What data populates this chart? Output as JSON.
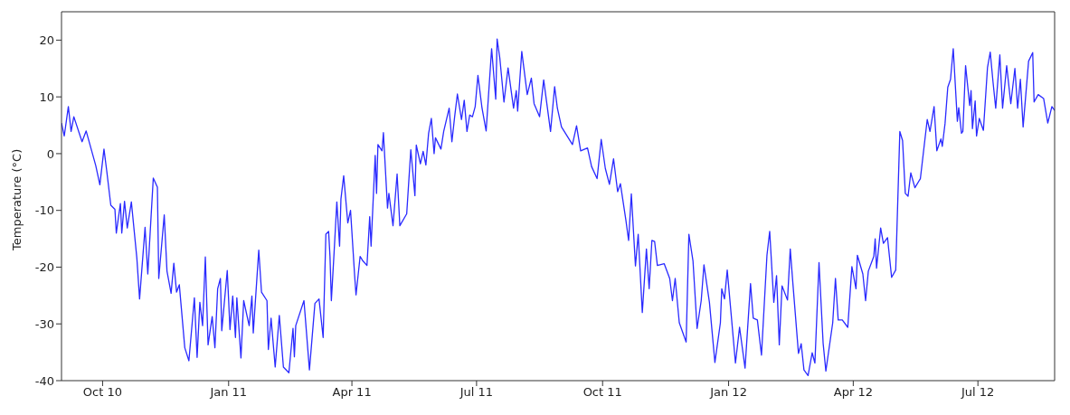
{
  "chart_data": {
    "type": "line",
    "ylabel": "Temperature (°C)",
    "color": "#2a2aff",
    "xlim": [
      "2010-09-01",
      "2012-08-26"
    ],
    "ylim": [
      -40,
      25
    ],
    "xticks": [
      {
        "value": "2010-10-01",
        "label": "Oct 10"
      },
      {
        "value": "2011-01-01",
        "label": "Jan 11"
      },
      {
        "value": "2011-04-01",
        "label": "Apr 11"
      },
      {
        "value": "2011-07-01",
        "label": "Jul 11"
      },
      {
        "value": "2011-10-01",
        "label": "Oct 11"
      },
      {
        "value": "2012-01-01",
        "label": "Jan 12"
      },
      {
        "value": "2012-04-01",
        "label": "Apr 12"
      },
      {
        "value": "2012-07-01",
        "label": "Jul 12"
      }
    ],
    "yticks": [
      -40,
      -30,
      -20,
      -10,
      0,
      10,
      20
    ],
    "x": [
      "2010-09-01",
      "2010-09-03",
      "2010-09-06",
      "2010-09-08",
      "2010-09-10",
      "2010-09-16",
      "2010-09-19",
      "2010-09-26",
      "2010-09-29",
      "2010-10-02",
      "2010-10-04",
      "2010-10-07",
      "2010-10-10",
      "2010-10-11",
      "2010-10-14",
      "2010-10-15",
      "2010-10-17",
      "2010-10-19",
      "2010-10-22",
      "2010-10-26",
      "2010-10-28",
      "2010-11-01",
      "2010-11-03",
      "2010-11-07",
      "2010-11-10",
      "2010-11-11",
      "2010-11-15",
      "2010-11-17",
      "2010-11-20",
      "2010-11-22",
      "2010-11-24",
      "2010-11-26",
      "2010-11-30",
      "2010-12-03",
      "2010-12-07",
      "2010-12-09",
      "2010-12-11",
      "2010-12-13",
      "2010-12-15",
      "2010-12-17",
      "2010-12-20",
      "2010-12-22",
      "2010-12-24",
      "2010-12-26",
      "2010-12-27",
      "2010-12-31",
      "2011-01-02",
      "2011-01-04",
      "2011-01-06",
      "2011-01-07",
      "2011-01-10",
      "2011-01-12",
      "2011-01-16",
      "2011-01-18",
      "2011-01-19",
      "2011-01-23",
      "2011-01-25",
      "2011-01-29",
      "2011-01-30",
      "2011-02-01",
      "2011-02-04",
      "2011-02-07",
      "2011-02-10",
      "2011-02-14",
      "2011-02-17",
      "2011-02-18",
      "2011-02-19",
      "2011-02-25",
      "2011-03-01",
      "2011-03-05",
      "2011-03-08",
      "2011-03-11",
      "2011-03-13",
      "2011-03-15",
      "2011-03-16",
      "2011-03-17",
      "2011-03-19",
      "2011-03-21",
      "2011-03-23",
      "2011-03-24",
      "2011-03-26",
      "2011-03-29",
      "2011-03-31",
      "2011-04-03",
      "2011-04-04",
      "2011-04-07",
      "2011-04-09",
      "2011-04-12",
      "2011-04-14",
      "2011-04-15",
      "2011-04-18",
      "2011-04-19",
      "2011-04-20",
      "2011-04-23",
      "2011-04-24",
      "2011-04-27",
      "2011-04-28",
      "2011-05-01",
      "2011-05-04",
      "2011-05-06",
      "2011-05-11",
      "2011-05-14",
      "2011-05-17",
      "2011-05-18",
      "2011-05-21",
      "2011-05-23",
      "2011-05-25",
      "2011-05-27",
      "2011-05-29",
      "2011-05-31",
      "2011-06-01",
      "2011-06-05",
      "2011-06-07",
      "2011-06-11",
      "2011-06-13",
      "2011-06-15",
      "2011-06-17",
      "2011-06-20",
      "2011-06-22",
      "2011-06-24",
      "2011-06-26",
      "2011-06-28",
      "2011-06-30",
      "2011-07-02",
      "2011-07-05",
      "2011-07-08",
      "2011-07-12",
      "2011-07-15",
      "2011-07-16",
      "2011-07-18",
      "2011-07-21",
      "2011-07-24",
      "2011-07-28",
      "2011-07-30",
      "2011-07-31",
      "2011-08-03",
      "2011-08-07",
      "2011-08-10",
      "2011-08-12",
      "2011-08-16",
      "2011-08-19",
      "2011-08-24",
      "2011-08-27",
      "2011-08-29",
      "2011-09-01",
      "2011-09-09",
      "2011-09-12",
      "2011-09-15",
      "2011-09-20",
      "2011-09-23",
      "2011-09-27",
      "2011-09-30",
      "2011-10-03",
      "2011-10-06",
      "2011-10-09",
      "2011-10-12",
      "2011-10-14",
      "2011-10-18",
      "2011-10-20",
      "2011-10-22",
      "2011-10-25",
      "2011-10-27",
      "2011-10-30",
      "2011-11-02",
      "2011-11-04",
      "2011-11-06",
      "2011-11-08",
      "2011-11-10",
      "2011-11-15",
      "2011-11-19",
      "2011-11-21",
      "2011-11-23",
      "2011-11-26",
      "2011-12-01",
      "2011-12-03",
      "2011-12-06",
      "2011-12-09",
      "2011-12-12",
      "2011-12-14",
      "2011-12-18",
      "2011-12-22",
      "2011-12-26",
      "2011-12-27",
      "2011-12-29",
      "2011-12-31",
      "2012-01-06",
      "2012-01-09",
      "2012-01-13",
      "2012-01-17",
      "2012-01-19",
      "2012-01-22",
      "2012-01-25",
      "2012-01-29",
      "2012-01-31",
      "2012-02-03",
      "2012-02-05",
      "2012-02-07",
      "2012-02-09",
      "2012-02-13",
      "2012-02-15",
      "2012-02-17",
      "2012-02-21",
      "2012-02-23",
      "2012-02-25",
      "2012-02-28",
      "2012-03-02",
      "2012-03-04",
      "2012-03-07",
      "2012-03-10",
      "2012-03-12",
      "2012-03-17",
      "2012-03-19",
      "2012-03-21",
      "2012-03-24",
      "2012-03-28",
      "2012-03-31",
      "2012-04-03",
      "2012-04-04",
      "2012-04-08",
      "2012-04-10",
      "2012-04-12",
      "2012-04-16",
      "2012-04-17",
      "2012-04-18",
      "2012-04-21",
      "2012-04-23",
      "2012-04-26",
      "2012-04-29",
      "2012-05-02",
      "2012-05-05",
      "2012-05-07",
      "2012-05-09",
      "2012-05-11",
      "2012-05-13",
      "2012-05-16",
      "2012-05-20",
      "2012-05-25",
      "2012-05-27",
      "2012-05-30",
      "2012-06-01",
      "2012-06-04",
      "2012-06-05",
      "2012-06-07",
      "2012-06-09",
      "2012-06-11",
      "2012-06-13",
      "2012-06-16",
      "2012-06-17",
      "2012-06-19",
      "2012-06-20",
      "2012-06-22",
      "2012-06-25",
      "2012-06-26",
      "2012-06-27",
      "2012-06-29",
      "2012-06-30",
      "2012-07-02",
      "2012-07-05",
      "2012-07-08",
      "2012-07-10",
      "2012-07-12",
      "2012-07-14",
      "2012-07-17",
      "2012-07-19",
      "2012-07-22",
      "2012-07-25",
      "2012-07-28",
      "2012-07-30",
      "2012-08-01",
      "2012-08-03",
      "2012-08-07",
      "2012-08-10",
      "2012-08-11",
      "2012-08-14",
      "2012-08-18",
      "2012-08-21",
      "2012-08-24",
      "2012-08-26"
    ],
    "values": [
      5.4,
      3.1,
      8.3,
      3.9,
      6.5,
      2.1,
      4.0,
      -2.1,
      -5.5,
      0.8,
      -3.0,
      -9.1,
      -9.8,
      -14.0,
      -8.8,
      -14.0,
      -8.4,
      -13.1,
      -8.5,
      -18.4,
      -25.6,
      -13.0,
      -21.2,
      -4.3,
      -5.9,
      -22.0,
      -10.8,
      -20.7,
      -24.6,
      -19.3,
      -24.4,
      -23.1,
      -34.2,
      -36.5,
      -25.4,
      -35.9,
      -26.2,
      -30.3,
      -18.2,
      -33.7,
      -28.7,
      -34.2,
      -23.8,
      -22.0,
      -31.2,
      -20.6,
      -31.0,
      -25.1,
      -32.4,
      -25.4,
      -36.0,
      -25.9,
      -30.3,
      -25.1,
      -31.6,
      -17.0,
      -24.4,
      -25.9,
      -34.5,
      -29.0,
      -37.6,
      -28.5,
      -37.6,
      -38.6,
      -30.8,
      -35.8,
      -30.3,
      -25.9,
      -38.1,
      -26.4,
      -25.6,
      -32.4,
      -14.2,
      -13.7,
      -18.1,
      -25.9,
      -17.4,
      -8.5,
      -16.3,
      -8.0,
      -3.9,
      -12.2,
      -10.0,
      -21.5,
      -24.9,
      -18.1,
      -18.9,
      -19.7,
      -11.1,
      -16.3,
      -0.3,
      -7.0,
      1.6,
      0.5,
      3.7,
      -9.6,
      -7.0,
      -12.7,
      -3.6,
      -12.7,
      -10.6,
      0.7,
      -7.4,
      1.5,
      -1.8,
      0.4,
      -2.0,
      3.6,
      6.2,
      0.0,
      2.8,
      0.8,
      3.9,
      8.0,
      2.1,
      6.5,
      10.5,
      6.0,
      9.4,
      3.9,
      6.8,
      6.5,
      8.3,
      13.8,
      8.0,
      4.0,
      18.5,
      9.6,
      20.2,
      16.8,
      9.1,
      15.1,
      8.0,
      11.1,
      7.5,
      18.0,
      10.4,
      13.3,
      8.8,
      6.5,
      13.0,
      3.9,
      11.8,
      8.0,
      4.7,
      1.6,
      4.9,
      0.5,
      1.0,
      -2.3,
      -4.4,
      2.5,
      -2.6,
      -5.4,
      -0.9,
      -6.7,
      -5.3,
      -11.7,
      -15.3,
      -7.1,
      -19.8,
      -14.2,
      -28.0,
      -16.8,
      -23.8,
      -15.3,
      -15.5,
      -19.7,
      -19.4,
      -22.0,
      -25.9,
      -22.0,
      -29.8,
      -33.2,
      -14.2,
      -18.9,
      -30.8,
      -25.9,
      -19.6,
      -26.2,
      -36.8,
      -29.8,
      -23.8,
      -25.6,
      -20.5,
      -36.9,
      -30.6,
      -37.8,
      -22.9,
      -29.0,
      -29.3,
      -35.5,
      -17.9,
      -13.7,
      -26.2,
      -21.5,
      -33.7,
      -23.3,
      -25.8,
      -16.8,
      -23.1,
      -35.2,
      -33.5,
      -38.1,
      -39.1,
      -35.1,
      -36.9,
      -19.2,
      -33.4,
      -38.3,
      -29.8,
      -22.0,
      -29.3,
      -29.3,
      -30.6,
      -19.9,
      -23.8,
      -17.9,
      -21.2,
      -25.9,
      -20.7,
      -18.1,
      -15.0,
      -20.2,
      -13.1,
      -15.8,
      -14.8,
      -21.8,
      -20.5,
      3.9,
      2.3,
      -7.0,
      -7.5,
      -3.4,
      -6.0,
      -4.4,
      6.0,
      3.9,
      8.3,
      0.5,
      2.6,
      1.3,
      5.3,
      11.7,
      13.1,
      18.5,
      5.7,
      8.1,
      3.6,
      3.9,
      15.5,
      8.5,
      11.1,
      4.4,
      9.3,
      3.1,
      6.2,
      4.1,
      15.2,
      17.9,
      12.7,
      8.0,
      17.4,
      8.0,
      15.5,
      8.8,
      15.0,
      8.0,
      13.1,
      4.7,
      16.3,
      17.8,
      9.1,
      10.4,
      9.7,
      5.4,
      8.3,
      7.6
    ]
  }
}
